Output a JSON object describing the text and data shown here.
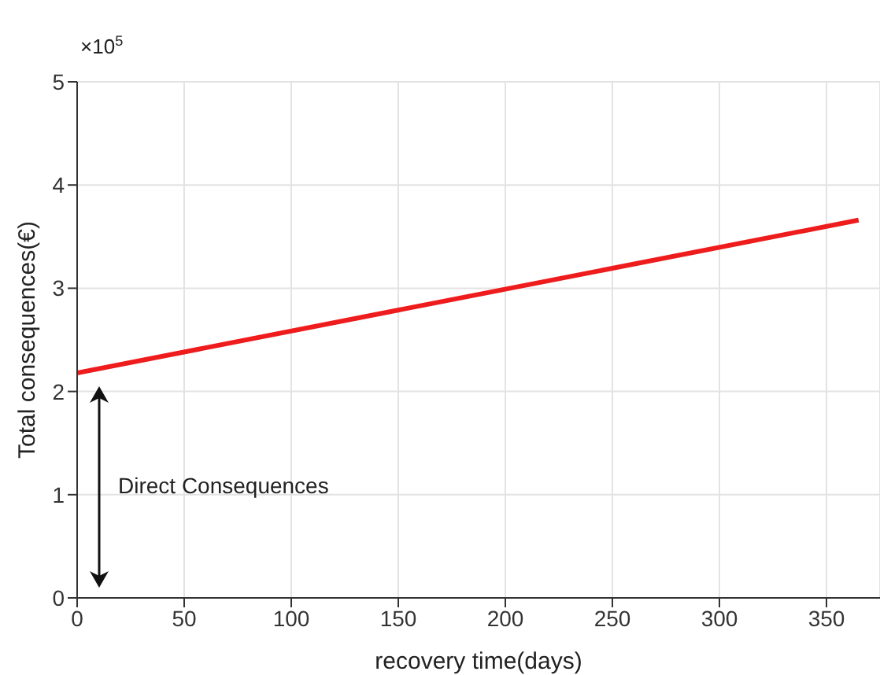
{
  "chart_data": {
    "type": "line",
    "xlabel": "recovery time(days)",
    "ylabel": "Total consequences(€)",
    "x": [
      0,
      365
    ],
    "series": [
      {
        "color": "#ee1c1c",
        "values": [
          2.18,
          3.66
        ]
      }
    ],
    "xlim": [
      0,
      375
    ],
    "xticks": [
      0,
      50,
      100,
      150,
      200,
      250,
      300,
      350
    ],
    "ylim": [
      0,
      5
    ],
    "yticks": [
      0,
      1,
      2,
      3,
      4,
      5
    ],
    "grid": true,
    "marker": "none",
    "line_style": "solid",
    "annotations": [
      "×10$^{5}$",
      "Direct Consequences"
    ]
  }
}
